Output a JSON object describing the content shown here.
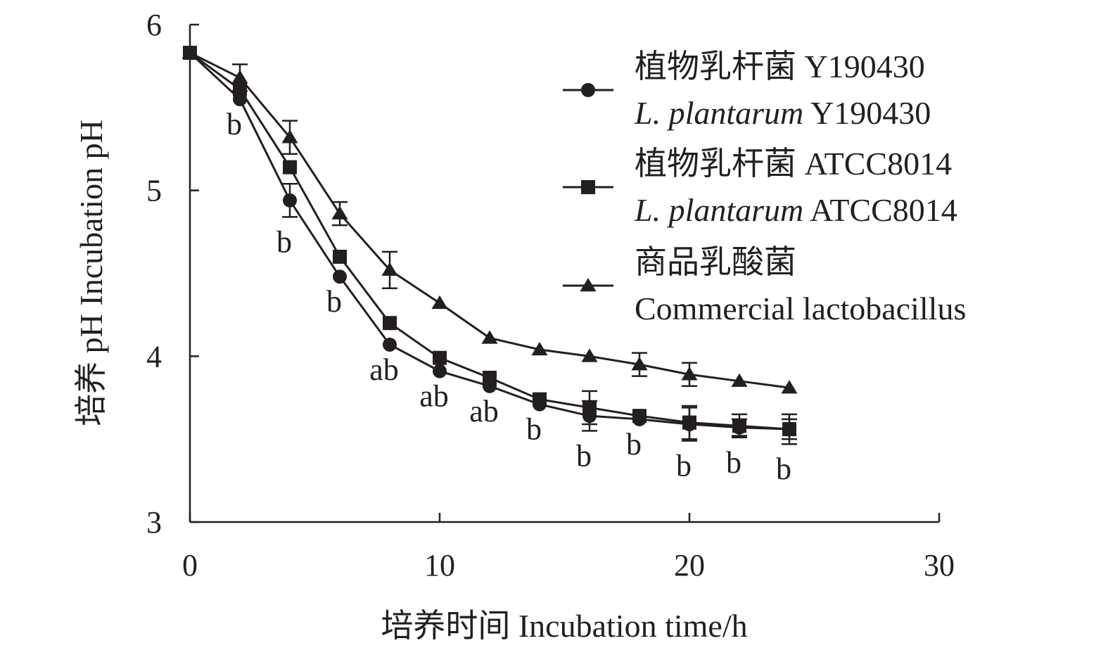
{
  "chart_data": {
    "type": "line",
    "title": "",
    "xlabel": "培养时间 Incubation time/h",
    "ylabel": "培养 pH Incubation pH",
    "xlim": [
      0,
      30
    ],
    "ylim": [
      3,
      6
    ],
    "xticks": [
      0,
      10,
      20,
      30
    ],
    "yticks": [
      3,
      4,
      5,
      6
    ],
    "xtick_labels": [
      "0",
      "10",
      "20",
      "30"
    ],
    "ytick_labels": [
      "3",
      "4",
      "5",
      "6"
    ],
    "grid": false,
    "legend_position": "top-right",
    "x": [
      0,
      2,
      4,
      6,
      8,
      10,
      12,
      14,
      16,
      18,
      20,
      22,
      24
    ],
    "series": [
      {
        "name": "植物乳杆菌 Y190430",
        "name_cn": "植物乳杆菌 Y190430",
        "name_en_italic": "L. plantarum",
        "name_en_rest": " Y190430",
        "marker": "circle",
        "values": [
          5.83,
          5.55,
          4.94,
          4.48,
          4.07,
          3.91,
          3.82,
          3.71,
          3.64,
          3.62,
          3.59,
          3.57,
          3.56
        ],
        "errors": [
          0,
          0,
          0.1,
          0,
          0,
          0,
          0,
          0,
          0.09,
          0,
          0.1,
          0.05,
          0.06
        ]
      },
      {
        "name": "植物乳杆菌 ATCC8014",
        "name_cn": "植物乳杆菌 ATCC8014",
        "name_en_italic": "L. plantarum",
        "name_en_rest": " ATCC8014",
        "marker": "square",
        "values": [
          5.83,
          5.61,
          5.14,
          4.6,
          4.2,
          3.99,
          3.87,
          3.74,
          3.69,
          3.64,
          3.6,
          3.58,
          3.56
        ],
        "errors": [
          0,
          0,
          0,
          0,
          0,
          0,
          0,
          0,
          0.1,
          0,
          0.1,
          0.07,
          0.09
        ]
      },
      {
        "name": "商品乳酸菌 Commercial lactobacillus",
        "name_cn": "商品乳酸菌",
        "name_en_italic": "",
        "name_en_rest": "Commercial lactobacillus",
        "marker": "triangle",
        "values": [
          5.83,
          5.68,
          5.32,
          4.86,
          4.52,
          4.32,
          4.11,
          4.04,
          4.0,
          3.95,
          3.89,
          3.85,
          3.81
        ],
        "errors": [
          0,
          0.08,
          0.1,
          0.07,
          0.11,
          0,
          0,
          0,
          0,
          0.07,
          0.07,
          0,
          0
        ]
      }
    ],
    "annotations": [
      {
        "x": 2,
        "text": "b"
      },
      {
        "x": 4,
        "text": "b"
      },
      {
        "x": 6,
        "text": "b"
      },
      {
        "x": 8,
        "text": "ab"
      },
      {
        "x": 10,
        "text": "ab"
      },
      {
        "x": 12,
        "text": "ab"
      },
      {
        "x": 14,
        "text": "b"
      },
      {
        "x": 16,
        "text": "b"
      },
      {
        "x": 18,
        "text": "b"
      },
      {
        "x": 20,
        "text": "b"
      },
      {
        "x": 22,
        "text": "b"
      },
      {
        "x": 24,
        "text": "b"
      }
    ]
  }
}
